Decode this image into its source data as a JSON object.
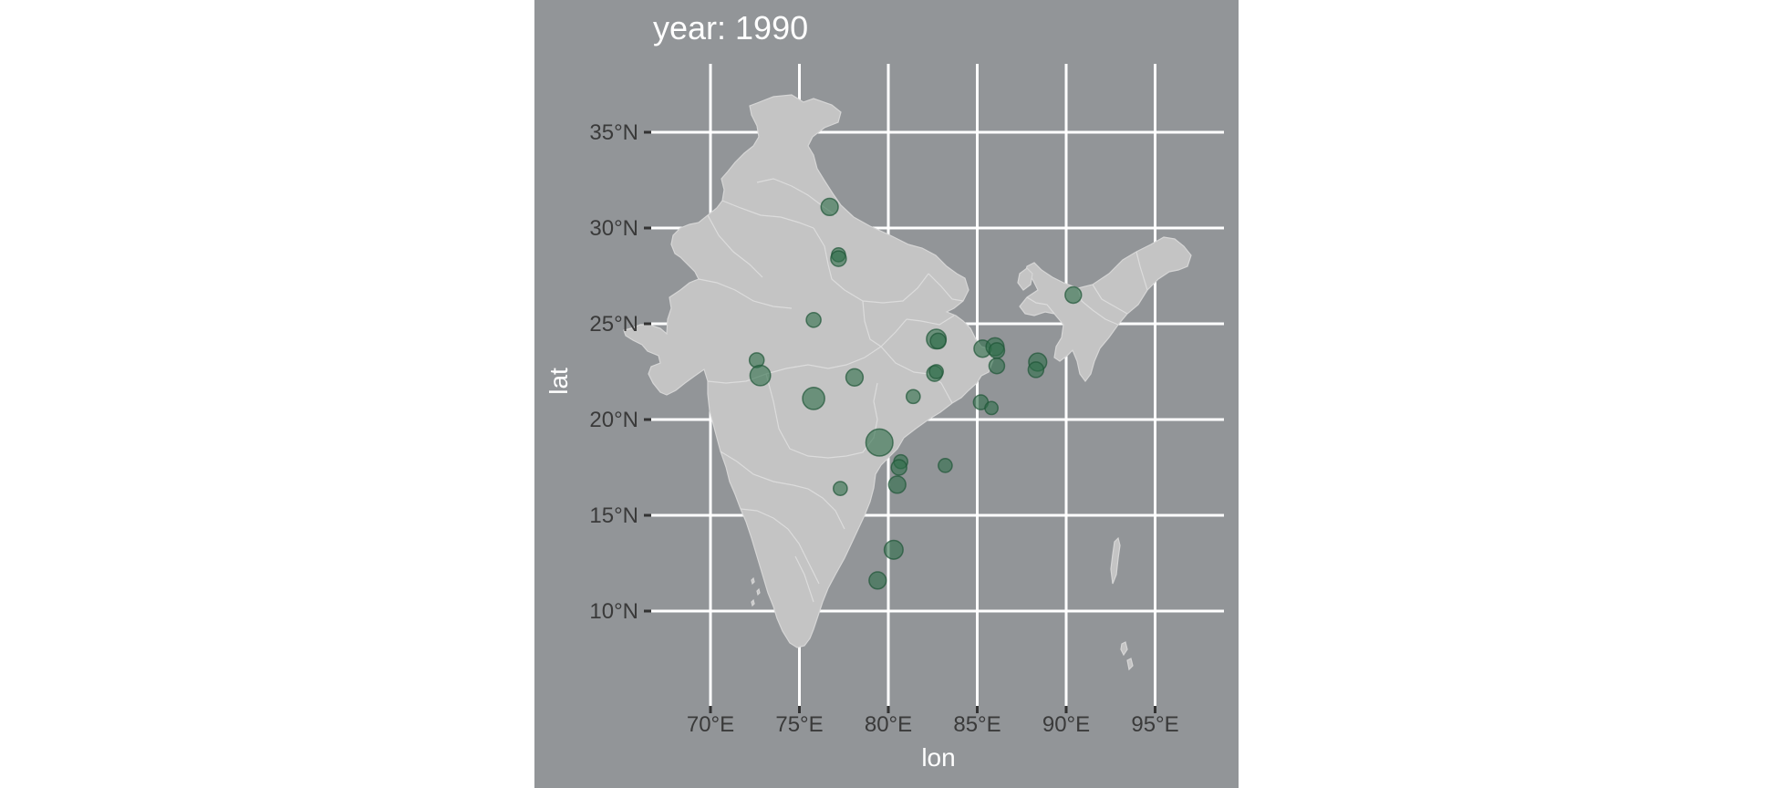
{
  "title": "year: 1990",
  "x_axis": {
    "label": "lon",
    "ticks": [
      {
        "value": 70,
        "label": "70°E"
      },
      {
        "value": 75,
        "label": "75°E"
      },
      {
        "value": 80,
        "label": "80°E"
      },
      {
        "value": 85,
        "label": "85°E"
      },
      {
        "value": 90,
        "label": "90°E"
      },
      {
        "value": 95,
        "label": "95°E"
      }
    ]
  },
  "y_axis": {
    "label": "lat",
    "ticks": [
      {
        "value": 10,
        "label": "10°N"
      },
      {
        "value": 15,
        "label": "15°N"
      },
      {
        "value": 20,
        "label": "20°N"
      },
      {
        "value": 25,
        "label": "25°N"
      },
      {
        "value": 30,
        "label": "30°N"
      },
      {
        "value": 35,
        "label": "35°N"
      }
    ]
  },
  "colors": {
    "panel_background": "#929598",
    "land": "#c4c4c4",
    "gridlines": "#ffffff",
    "points": "#2f6e4a"
  },
  "map": {
    "region": "India",
    "lon_range": [
      66.5,
      97.2
    ],
    "lat_range": [
      5.0,
      37.5
    ]
  },
  "points": [
    {
      "lon": 76.7,
      "lat": 31.1,
      "size": 1.2
    },
    {
      "lon": 77.2,
      "lat": 28.6,
      "size": 0.8
    },
    {
      "lon": 77.2,
      "lat": 28.4,
      "size": 1.0
    },
    {
      "lon": 75.8,
      "lat": 25.2,
      "size": 0.9
    },
    {
      "lon": 72.6,
      "lat": 23.1,
      "size": 0.9
    },
    {
      "lon": 72.8,
      "lat": 22.3,
      "size": 1.6
    },
    {
      "lon": 75.8,
      "lat": 21.1,
      "size": 1.8
    },
    {
      "lon": 78.1,
      "lat": 22.2,
      "size": 1.2
    },
    {
      "lon": 79.5,
      "lat": 18.8,
      "size": 2.4
    },
    {
      "lon": 80.7,
      "lat": 17.8,
      "size": 0.8
    },
    {
      "lon": 80.6,
      "lat": 17.5,
      "size": 1.0
    },
    {
      "lon": 80.5,
      "lat": 16.6,
      "size": 1.2
    },
    {
      "lon": 83.2,
      "lat": 17.6,
      "size": 0.8
    },
    {
      "lon": 77.3,
      "lat": 16.4,
      "size": 0.8
    },
    {
      "lon": 80.3,
      "lat": 13.2,
      "size": 1.4
    },
    {
      "lon": 79.4,
      "lat": 11.6,
      "size": 1.2
    },
    {
      "lon": 81.4,
      "lat": 21.2,
      "size": 0.8
    },
    {
      "lon": 82.7,
      "lat": 24.2,
      "size": 1.5
    },
    {
      "lon": 82.8,
      "lat": 24.1,
      "size": 1.0
    },
    {
      "lon": 82.6,
      "lat": 22.4,
      "size": 1.0
    },
    {
      "lon": 82.7,
      "lat": 22.5,
      "size": 0.8
    },
    {
      "lon": 85.3,
      "lat": 23.7,
      "size": 1.2
    },
    {
      "lon": 86.0,
      "lat": 23.8,
      "size": 1.3
    },
    {
      "lon": 86.1,
      "lat": 23.6,
      "size": 1.0
    },
    {
      "lon": 86.1,
      "lat": 22.8,
      "size": 1.0
    },
    {
      "lon": 85.2,
      "lat": 20.9,
      "size": 0.9
    },
    {
      "lon": 85.8,
      "lat": 20.6,
      "size": 0.7
    },
    {
      "lon": 88.4,
      "lat": 23.0,
      "size": 1.3
    },
    {
      "lon": 88.3,
      "lat": 22.6,
      "size": 1.0
    },
    {
      "lon": 90.4,
      "lat": 26.5,
      "size": 1.1
    }
  ]
}
